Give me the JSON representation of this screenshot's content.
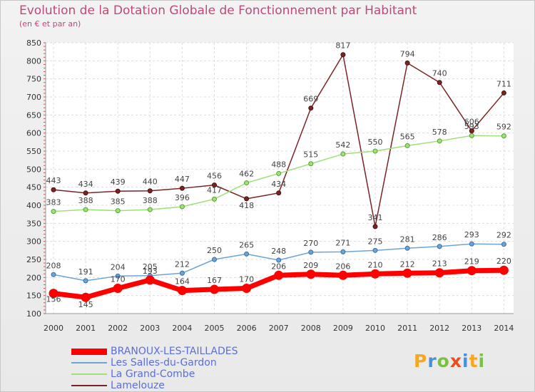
{
  "title": "Evolution de la Dotation Globale de Fonctionnement par Habitant",
  "subtitle": "(en € et par an)",
  "logo": {
    "letters": [
      "P",
      "r",
      "o",
      "x",
      "i",
      "t",
      "i"
    ],
    "colors": [
      "#f5a623",
      "#4a90d9",
      "#7ac143",
      "#e94e1b",
      "#4a90d9",
      "#f5a623",
      "#7ac143"
    ]
  },
  "chart_data": {
    "type": "line",
    "x": [
      "2000",
      "2001",
      "2002",
      "2003",
      "2004",
      "2005",
      "2006",
      "2007",
      "2008",
      "2009",
      "2010",
      "2011",
      "2012",
      "2013",
      "2014"
    ],
    "yticks": [
      "100",
      "150",
      "200",
      "250",
      "300",
      "350",
      "400",
      "450",
      "500",
      "550",
      "600",
      "650",
      "700",
      "750",
      "800",
      "850"
    ],
    "ylim": [
      100,
      850
    ],
    "grid": true,
    "legend_position": "bottom-left",
    "series": [
      {
        "name": "BRANOUX-LES-TAILLADES",
        "color": "#ff0000",
        "values": [
          156,
          145,
          170,
          193,
          164,
          167,
          170,
          206,
          209,
          206,
          210,
          212,
          213,
          219,
          220
        ],
        "labels": [
          "156",
          "145",
          "170",
          "193",
          "164",
          "167",
          "170",
          "206",
          "209",
          "206",
          "210",
          "212",
          "213",
          "219",
          "220"
        ]
      },
      {
        "name": "Les Salles-du-Gardon",
        "color": "#6ca4d8",
        "values": [
          208,
          191,
          204,
          205,
          212,
          250,
          265,
          248,
          270,
          271,
          275,
          281,
          286,
          293,
          292
        ],
        "labels": [
          "208",
          "191",
          "204",
          "205",
          "212",
          "250",
          "265",
          "248",
          "270",
          "271",
          "275",
          "281",
          "286",
          "293",
          "292"
        ]
      },
      {
        "name": "La Grand-Combe",
        "color": "#9ee07a",
        "values": [
          383,
          388,
          385,
          388,
          396,
          417,
          462,
          488,
          515,
          542,
          550,
          565,
          578,
          593,
          592
        ],
        "labels": [
          "383",
          "388",
          "385",
          "388",
          "396",
          "417",
          "462",
          "488",
          "515",
          "542",
          "550",
          "565",
          "578",
          "593",
          "592"
        ]
      },
      {
        "name": "Lamelouze",
        "color": "#7a2525",
        "values": [
          443,
          434,
          439,
          440,
          447,
          456,
          418,
          434,
          669,
          817,
          341,
          794,
          740,
          606,
          711
        ],
        "labels": [
          "443",
          "434",
          "439",
          "440",
          "447",
          "456",
          "418",
          "434",
          "669",
          "817",
          "341",
          "794",
          "740",
          "606",
          "711"
        ]
      }
    ]
  }
}
